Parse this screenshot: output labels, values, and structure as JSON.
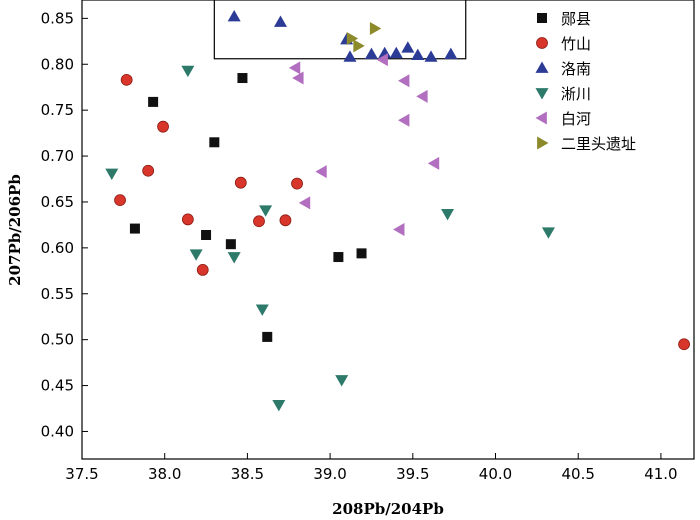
{
  "chart_data": {
    "type": "scatter",
    "title": "",
    "xlabel": "208Pb/204Pb",
    "ylabel": "207Pb/206Pb",
    "xlim": [
      37.5,
      41.2
    ],
    "ylim": [
      0.37,
      0.87
    ],
    "xticks": [
      37.5,
      38.0,
      38.5,
      39.0,
      39.5,
      40.0,
      40.5,
      41.0
    ],
    "yticks": [
      0.4,
      0.45,
      0.5,
      0.55,
      0.6,
      0.65,
      0.7,
      0.75,
      0.8,
      0.85
    ],
    "xtick_labels": [
      "37.5",
      "38.0",
      "38.5",
      "39.0",
      "39.5",
      "40.0",
      "40.5",
      "41.0"
    ],
    "ytick_labels": [
      "0.40",
      "0.45",
      "0.50",
      "0.55",
      "0.60",
      "0.65",
      "0.70",
      "0.75",
      "0.80",
      "0.85"
    ],
    "legend_position": "top-right",
    "highlight_box": {
      "x": [
        38.3,
        39.82
      ],
      "y": [
        0.806,
        0.879
      ]
    },
    "series": [
      {
        "name": "郧县",
        "marker": "square",
        "color": "#111111",
        "points": [
          [
            37.82,
            0.621
          ],
          [
            37.93,
            0.759
          ],
          [
            38.25,
            0.614
          ],
          [
            38.3,
            0.715
          ],
          [
            38.4,
            0.604
          ],
          [
            38.47,
            0.785
          ],
          [
            38.62,
            0.503
          ],
          [
            39.05,
            0.59
          ],
          [
            39.19,
            0.594
          ]
        ]
      },
      {
        "name": "竹山",
        "marker": "circle",
        "color": "#d9362b",
        "points": [
          [
            37.73,
            0.652
          ],
          [
            37.77,
            0.783
          ],
          [
            37.9,
            0.684
          ],
          [
            37.99,
            0.732
          ],
          [
            38.14,
            0.631
          ],
          [
            38.23,
            0.576
          ],
          [
            38.46,
            0.671
          ],
          [
            38.57,
            0.629
          ],
          [
            38.73,
            0.63
          ],
          [
            38.8,
            0.67
          ],
          [
            41.14,
            0.495
          ]
        ]
      },
      {
        "name": "洛南",
        "marker": "triangle-up",
        "color": "#2b3b96",
        "points": [
          [
            38.42,
            0.852
          ],
          [
            38.7,
            0.846
          ],
          [
            39.1,
            0.827
          ],
          [
            39.12,
            0.808
          ],
          [
            39.25,
            0.811
          ],
          [
            39.33,
            0.812
          ],
          [
            39.4,
            0.812
          ],
          [
            39.47,
            0.818
          ],
          [
            39.53,
            0.81
          ],
          [
            39.61,
            0.808
          ],
          [
            39.73,
            0.811
          ]
        ]
      },
      {
        "name": "淅川",
        "marker": "triangle-down",
        "color": "#2e7a6a",
        "points": [
          [
            37.68,
            0.681
          ],
          [
            38.14,
            0.793
          ],
          [
            38.19,
            0.593
          ],
          [
            38.42,
            0.59
          ],
          [
            38.59,
            0.533
          ],
          [
            38.61,
            0.641
          ],
          [
            38.69,
            0.429
          ],
          [
            39.07,
            0.456
          ],
          [
            39.71,
            0.637
          ],
          [
            40.32,
            0.617
          ]
        ]
      },
      {
        "name": "白河",
        "marker": "triangle-left",
        "color": "#b26fc0",
        "points": [
          [
            38.79,
            0.796
          ],
          [
            38.81,
            0.785
          ],
          [
            38.85,
            0.649
          ],
          [
            38.95,
            0.683
          ],
          [
            39.32,
            0.805
          ],
          [
            39.42,
            0.62
          ],
          [
            39.45,
            0.739
          ],
          [
            39.45,
            0.782
          ],
          [
            39.56,
            0.765
          ],
          [
            39.63,
            0.692
          ]
        ]
      },
      {
        "name": "二里头遗址",
        "marker": "triangle-right",
        "color": "#8c8a2a",
        "points": [
          [
            39.13,
            0.828
          ],
          [
            39.17,
            0.82
          ],
          [
            39.27,
            0.839
          ]
        ]
      }
    ]
  }
}
